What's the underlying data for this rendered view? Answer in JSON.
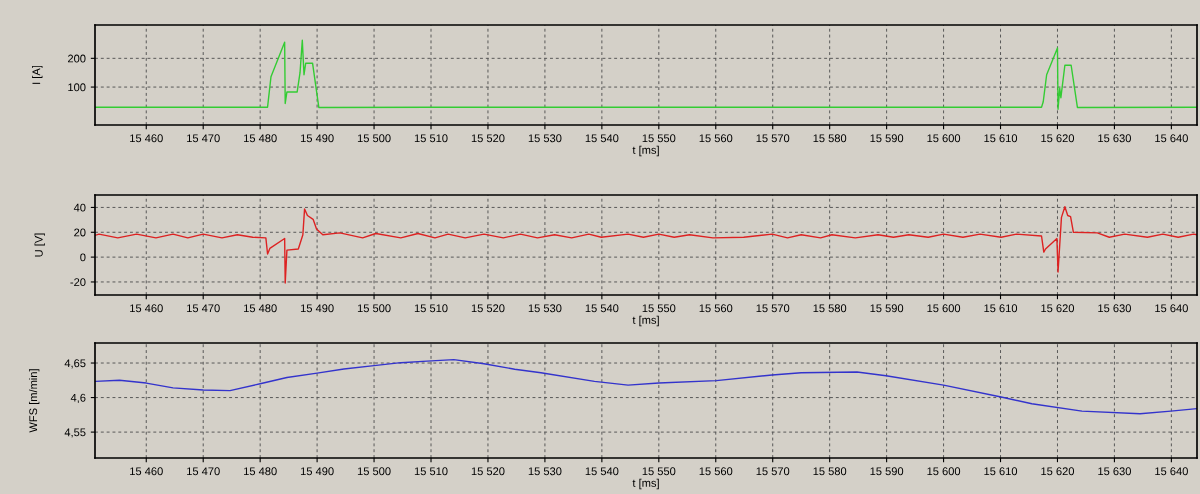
{
  "chart_data": [
    {
      "type": "line",
      "xlabel": "t [ms]",
      "ylabel": "I [A]",
      "grid": true,
      "line_style": "solid",
      "xlim": [
        15451,
        15644.5
      ],
      "ylim": [
        -32,
        316
      ],
      "xticks": [
        {
          "value": 15460,
          "label": "15 460"
        },
        {
          "value": 15470,
          "label": "15 470"
        },
        {
          "value": 15480,
          "label": "15 480"
        },
        {
          "value": 15490,
          "label": "15 490"
        },
        {
          "value": 15500,
          "label": "15 500"
        },
        {
          "value": 15510,
          "label": "15 510"
        },
        {
          "value": 15520,
          "label": "15 520"
        },
        {
          "value": 15530,
          "label": "15 530"
        },
        {
          "value": 15540,
          "label": "15 540"
        },
        {
          "value": 15550,
          "label": "15 550"
        },
        {
          "value": 15560,
          "label": "15 560"
        },
        {
          "value": 15570,
          "label": "15 570"
        },
        {
          "value": 15580,
          "label": "15 580"
        },
        {
          "value": 15590,
          "label": "15 590"
        },
        {
          "value": 15600,
          "label": "15 600"
        },
        {
          "value": 15610,
          "label": "15 610"
        },
        {
          "value": 15620,
          "label": "15 620"
        },
        {
          "value": 15630,
          "label": "15 630"
        },
        {
          "value": 15640,
          "label": "15 640"
        }
      ],
      "yticks": [
        100,
        200
      ],
      "series": [
        {
          "color": "#33cc33",
          "x": [
            15451,
            15465,
            15481.3,
            15481.9,
            15484.3,
            15484.4,
            15484.7,
            15486.5,
            15487.0,
            15487.4,
            15487.7,
            15488.0,
            15489.2,
            15490.3,
            15510,
            15540,
            15580,
            15617.2,
            15617.5,
            15618.1,
            15620.0,
            15620.1,
            15620.4,
            15620.6,
            15621.3,
            15622.4,
            15623.5,
            15644.5
          ],
          "values": [
            30,
            30,
            30,
            136,
            256,
            43,
            83,
            83,
            150,
            263,
            143,
            183,
            183,
            29,
            30,
            30,
            30,
            30,
            49,
            143,
            236,
            23,
            96,
            63,
            176,
            176,
            29,
            30
          ]
        }
      ]
    },
    {
      "type": "line",
      "xlabel": "t [ms]",
      "ylabel": "U [V]",
      "grid": true,
      "line_style": "solid",
      "xlim": [
        15451,
        15644.5
      ],
      "ylim": [
        -30.5,
        50
      ],
      "xticks": [
        {
          "value": 15460,
          "label": "15 460"
        },
        {
          "value": 15470,
          "label": "15 470"
        },
        {
          "value": 15480,
          "label": "15 480"
        },
        {
          "value": 15490,
          "label": "15 490"
        },
        {
          "value": 15500,
          "label": "15 500"
        },
        {
          "value": 15510,
          "label": "15 510"
        },
        {
          "value": 15520,
          "label": "15 520"
        },
        {
          "value": 15530,
          "label": "15 530"
        },
        {
          "value": 15540,
          "label": "15 540"
        },
        {
          "value": 15550,
          "label": "15 550"
        },
        {
          "value": 15560,
          "label": "15 560"
        },
        {
          "value": 15570,
          "label": "15 570"
        },
        {
          "value": 15580,
          "label": "15 580"
        },
        {
          "value": 15590,
          "label": "15 590"
        },
        {
          "value": 15600,
          "label": "15 600"
        },
        {
          "value": 15610,
          "label": "15 610"
        },
        {
          "value": 15620,
          "label": "15 620"
        },
        {
          "value": 15630,
          "label": "15 630"
        },
        {
          "value": 15640,
          "label": "15 640"
        }
      ],
      "yticks": [
        -20,
        0,
        20,
        40
      ],
      "series": [
        {
          "color": "#dd2222",
          "x": [
            15451,
            15451.7,
            15455,
            15458.3,
            15461.7,
            15464.7,
            15467.3,
            15470,
            15473.3,
            15476,
            15478.7,
            15481,
            15481.3,
            15481.7,
            15484.3,
            15484.4,
            15484.7,
            15486.7,
            15487.5,
            15487.8,
            15488.3,
            15489.3,
            15489.9,
            15491,
            15494,
            15498,
            15500.3,
            15504.7,
            15507.7,
            15510.7,
            15513,
            15516,
            15519.3,
            15522.7,
            15525.7,
            15528.7,
            15531.7,
            15534.7,
            15537.7,
            15539.9,
            15544.6,
            15547.3,
            15550,
            15552.7,
            15555.4,
            15559.5,
            15564.9,
            15569.9,
            15572.6,
            15575,
            15578.4,
            15580.4,
            15584.5,
            15588.5,
            15591.2,
            15593.9,
            15597.3,
            15600,
            15603.4,
            15606.4,
            15610.1,
            15612.8,
            15617.2,
            15617.6,
            15617.9,
            15619.9,
            15620.1,
            15620.4,
            15620.7,
            15621.3,
            15621.8,
            15622.3,
            15622.8,
            15627,
            15629.1,
            15631.8,
            15635.8,
            15638.5,
            15641.2,
            15643.9,
            15644.5
          ],
          "values": [
            17.5,
            18.5,
            15.5,
            18.5,
            15.5,
            18.5,
            15.5,
            18.5,
            15.5,
            18,
            16,
            15.5,
            2.5,
            7,
            15,
            -20.8,
            5.6,
            6.5,
            18,
            38.8,
            33.5,
            30.4,
            22.6,
            18,
            19.5,
            15.5,
            19,
            15.5,
            19,
            15.5,
            18.5,
            15.5,
            18.5,
            15.5,
            18.5,
            15.5,
            18,
            15.5,
            18.5,
            16,
            18.5,
            16,
            18.5,
            16,
            18,
            15.5,
            16,
            18.5,
            15.5,
            18,
            15.5,
            18,
            15.5,
            18,
            16,
            18,
            16,
            18.5,
            16,
            18.5,
            16,
            18.5,
            17,
            4,
            6.5,
            15,
            -12,
            10,
            32,
            40.6,
            33.5,
            32.6,
            20,
            19.5,
            16,
            18.5,
            16,
            18.5,
            16,
            18.5,
            18
          ]
        }
      ]
    },
    {
      "type": "line",
      "xlabel": "t [ms]",
      "ylabel": "WFS [m/min]",
      "grid": true,
      "line_style": "solid",
      "xlim": [
        15451,
        15644.5
      ],
      "ylim": [
        4.5125,
        4.679
      ],
      "xticks": [
        {
          "value": 15460,
          "label": "15 460"
        },
        {
          "value": 15470,
          "label": "15 470"
        },
        {
          "value": 15480,
          "label": "15 480"
        },
        {
          "value": 15490,
          "label": "15 490"
        },
        {
          "value": 15500,
          "label": "15 500"
        },
        {
          "value": 15510,
          "label": "15 510"
        },
        {
          "value": 15520,
          "label": "15 520"
        },
        {
          "value": 15530,
          "label": "15 530"
        },
        {
          "value": 15540,
          "label": "15 540"
        },
        {
          "value": 15550,
          "label": "15 550"
        },
        {
          "value": 15560,
          "label": "15 560"
        },
        {
          "value": 15570,
          "label": "15 570"
        },
        {
          "value": 15580,
          "label": "15 580"
        },
        {
          "value": 15590,
          "label": "15 590"
        },
        {
          "value": 15600,
          "label": "15 600"
        },
        {
          "value": 15610,
          "label": "15 610"
        },
        {
          "value": 15620,
          "label": "15 620"
        },
        {
          "value": 15630,
          "label": "15 630"
        },
        {
          "value": 15640,
          "label": "15 640"
        }
      ],
      "yticks": [
        {
          "value": 4.55,
          "label": "4,55"
        },
        {
          "value": 4.6,
          "label": "4,6"
        },
        {
          "value": 4.65,
          "label": "4,65"
        }
      ],
      "series": [
        {
          "color": "#3333cc",
          "x": [
            15451.1,
            15455.3,
            15460,
            15464.7,
            15470,
            15474.7,
            15480,
            15484.7,
            15490,
            15494.7,
            15500,
            15504.7,
            15509.3,
            15514,
            15519.3,
            15524.7,
            15529.3,
            15538.7,
            15544.6,
            15550,
            15560.1,
            15569.9,
            15575,
            15584.8,
            15589.9,
            15600,
            15610.1,
            15615.5,
            15624.3,
            15634.5,
            15639.9,
            15644.5
          ],
          "values": [
            4.6235,
            4.625,
            4.621,
            4.614,
            4.611,
            4.61,
            4.62,
            4.629,
            4.6354,
            4.6413,
            4.6462,
            4.6505,
            4.6527,
            4.6549,
            4.649,
            4.641,
            4.636,
            4.6235,
            4.618,
            4.621,
            4.6246,
            4.6327,
            4.636,
            4.637,
            4.6316,
            4.618,
            4.6008,
            4.5911,
            4.5803,
            4.5765,
            4.5803,
            4.584
          ]
        }
      ]
    }
  ]
}
